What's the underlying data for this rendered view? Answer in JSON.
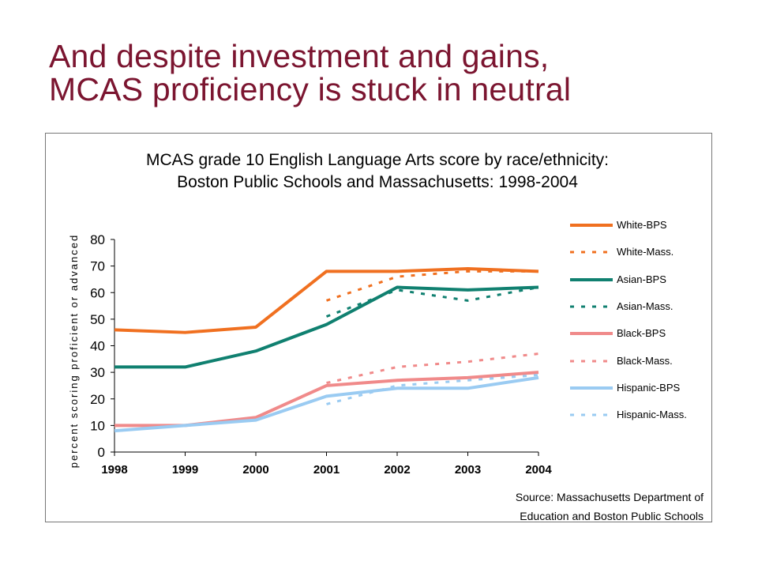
{
  "slide": {
    "title_line1": "And despite investment and gains,",
    "title_line2": "MCAS proficiency is stuck in neutral"
  },
  "chart_data": {
    "type": "line",
    "title_line1": "MCAS grade 10 English Language Arts score by race/ethnicity:",
    "title_line2": "Boston Public Schools and Massachusetts: 1998-2004",
    "xlabel": "",
    "ylabel": "percent scoring proficient or advanced",
    "x": [
      "1998",
      "1999",
      "2000",
      "2001",
      "2002",
      "2003",
      "2004"
    ],
    "ylim": [
      0,
      80
    ],
    "yticks": [
      0,
      10,
      20,
      30,
      40,
      50,
      60,
      70,
      80
    ],
    "grid": false,
    "legend_position": "right",
    "series": [
      {
        "name": "White-BPS",
        "color": "#F07020",
        "dashed": false,
        "values": [
          46,
          45,
          47,
          68,
          68,
          69,
          68
        ]
      },
      {
        "name": "White-Mass.",
        "color": "#F07020",
        "dashed": true,
        "values": [
          null,
          null,
          null,
          57,
          66,
          68,
          68
        ]
      },
      {
        "name": "Asian-BPS",
        "color": "#108070",
        "dashed": false,
        "values": [
          32,
          32,
          38,
          48,
          62,
          61,
          62
        ]
      },
      {
        "name": "Asian-Mass.",
        "color": "#108070",
        "dashed": true,
        "values": [
          null,
          null,
          null,
          51,
          61,
          57,
          62
        ]
      },
      {
        "name": "Black-BPS",
        "color": "#F08A8A",
        "dashed": false,
        "values": [
          10,
          10,
          13,
          25,
          27,
          28,
          30
        ]
      },
      {
        "name": "Black-Mass.",
        "color": "#F08A8A",
        "dashed": true,
        "values": [
          null,
          null,
          null,
          26,
          32,
          34,
          37
        ]
      },
      {
        "name": "Hispanic-BPS",
        "color": "#9ACBF2",
        "dashed": false,
        "values": [
          8,
          10,
          12,
          21,
          24,
          24,
          28
        ]
      },
      {
        "name": "Hispanic-Mass.",
        "color": "#9ACBF2",
        "dashed": true,
        "values": [
          null,
          null,
          null,
          18,
          25,
          27,
          29
        ]
      }
    ],
    "source_line1": "Source: Massachusetts Department of",
    "source_line2": "Education and Boston Public Schools"
  }
}
